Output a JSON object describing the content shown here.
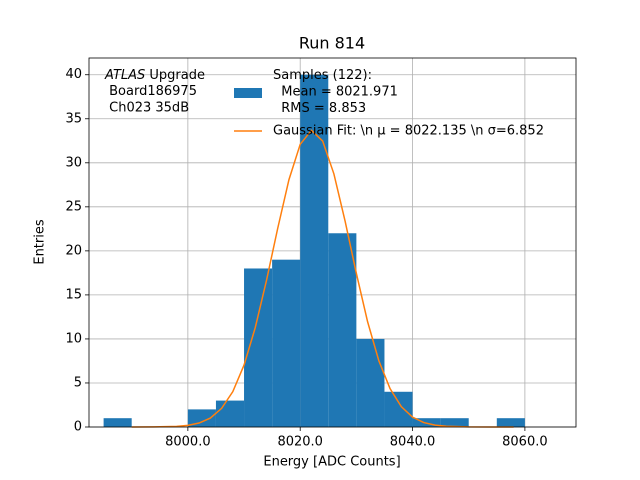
{
  "chart_data": {
    "type": "histogram",
    "title": "Run 814",
    "xlabel": "Energy [ADC Counts]",
    "ylabel": "Entries",
    "annotation": [
      "ATLAS Upgrade",
      " Board186975",
      " Ch023 35dB"
    ],
    "bins": [
      7985,
      7990,
      7995,
      8000,
      8005,
      8010,
      8015,
      8020,
      8025,
      8030,
      8035,
      8040,
      8045,
      8050,
      8055,
      8060
    ],
    "series": [
      {
        "name": "Samples (122):\n Mean = 8021.971\n RMS = 8.853",
        "color": "#1f77b4",
        "values": [
          1,
          0,
          0,
          2,
          3,
          18,
          19,
          40,
          22,
          10,
          4,
          1,
          1,
          0,
          1
        ]
      }
    ],
    "fit": {
      "name": "Gaussian Fit: \\n μ = 8022.135 \\n σ=6.852",
      "color": "#ff7f0e",
      "x": [
        7990,
        7994,
        7998,
        8000,
        8002,
        8004,
        8006,
        8008,
        8010,
        8012,
        8014,
        8016,
        8018,
        8020,
        8022,
        8024,
        8026,
        8028,
        8030,
        8032,
        8034,
        8036,
        8038,
        8040,
        8042,
        8044,
        8046,
        8050,
        8054,
        8058
      ],
      "values": [
        0,
        0.01,
        0.07,
        0.18,
        0.45,
        1.01,
        2.11,
        4.01,
        7.03,
        11.29,
        16.65,
        22.57,
        28.09,
        32.1,
        33.69,
        32.47,
        28.74,
        23.36,
        17.44,
        11.95,
        7.52,
        4.35,
        2.31,
        1.12,
        0.5,
        0.21,
        0.08,
        0.01,
        0,
        0
      ]
    },
    "xlim": [
      7982.4,
      8069.1
    ],
    "ylim": [
      0,
      41.9
    ],
    "xticks": [
      {
        "value": 8000,
        "label": "8000.0"
      },
      {
        "value": 8020,
        "label": "8020.0"
      },
      {
        "value": 8040,
        "label": "8040.0"
      },
      {
        "value": 8060,
        "label": "8060.0"
      }
    ],
    "yticks": [
      0,
      5,
      10,
      15,
      20,
      25,
      30,
      35,
      40
    ],
    "grid": true
  }
}
